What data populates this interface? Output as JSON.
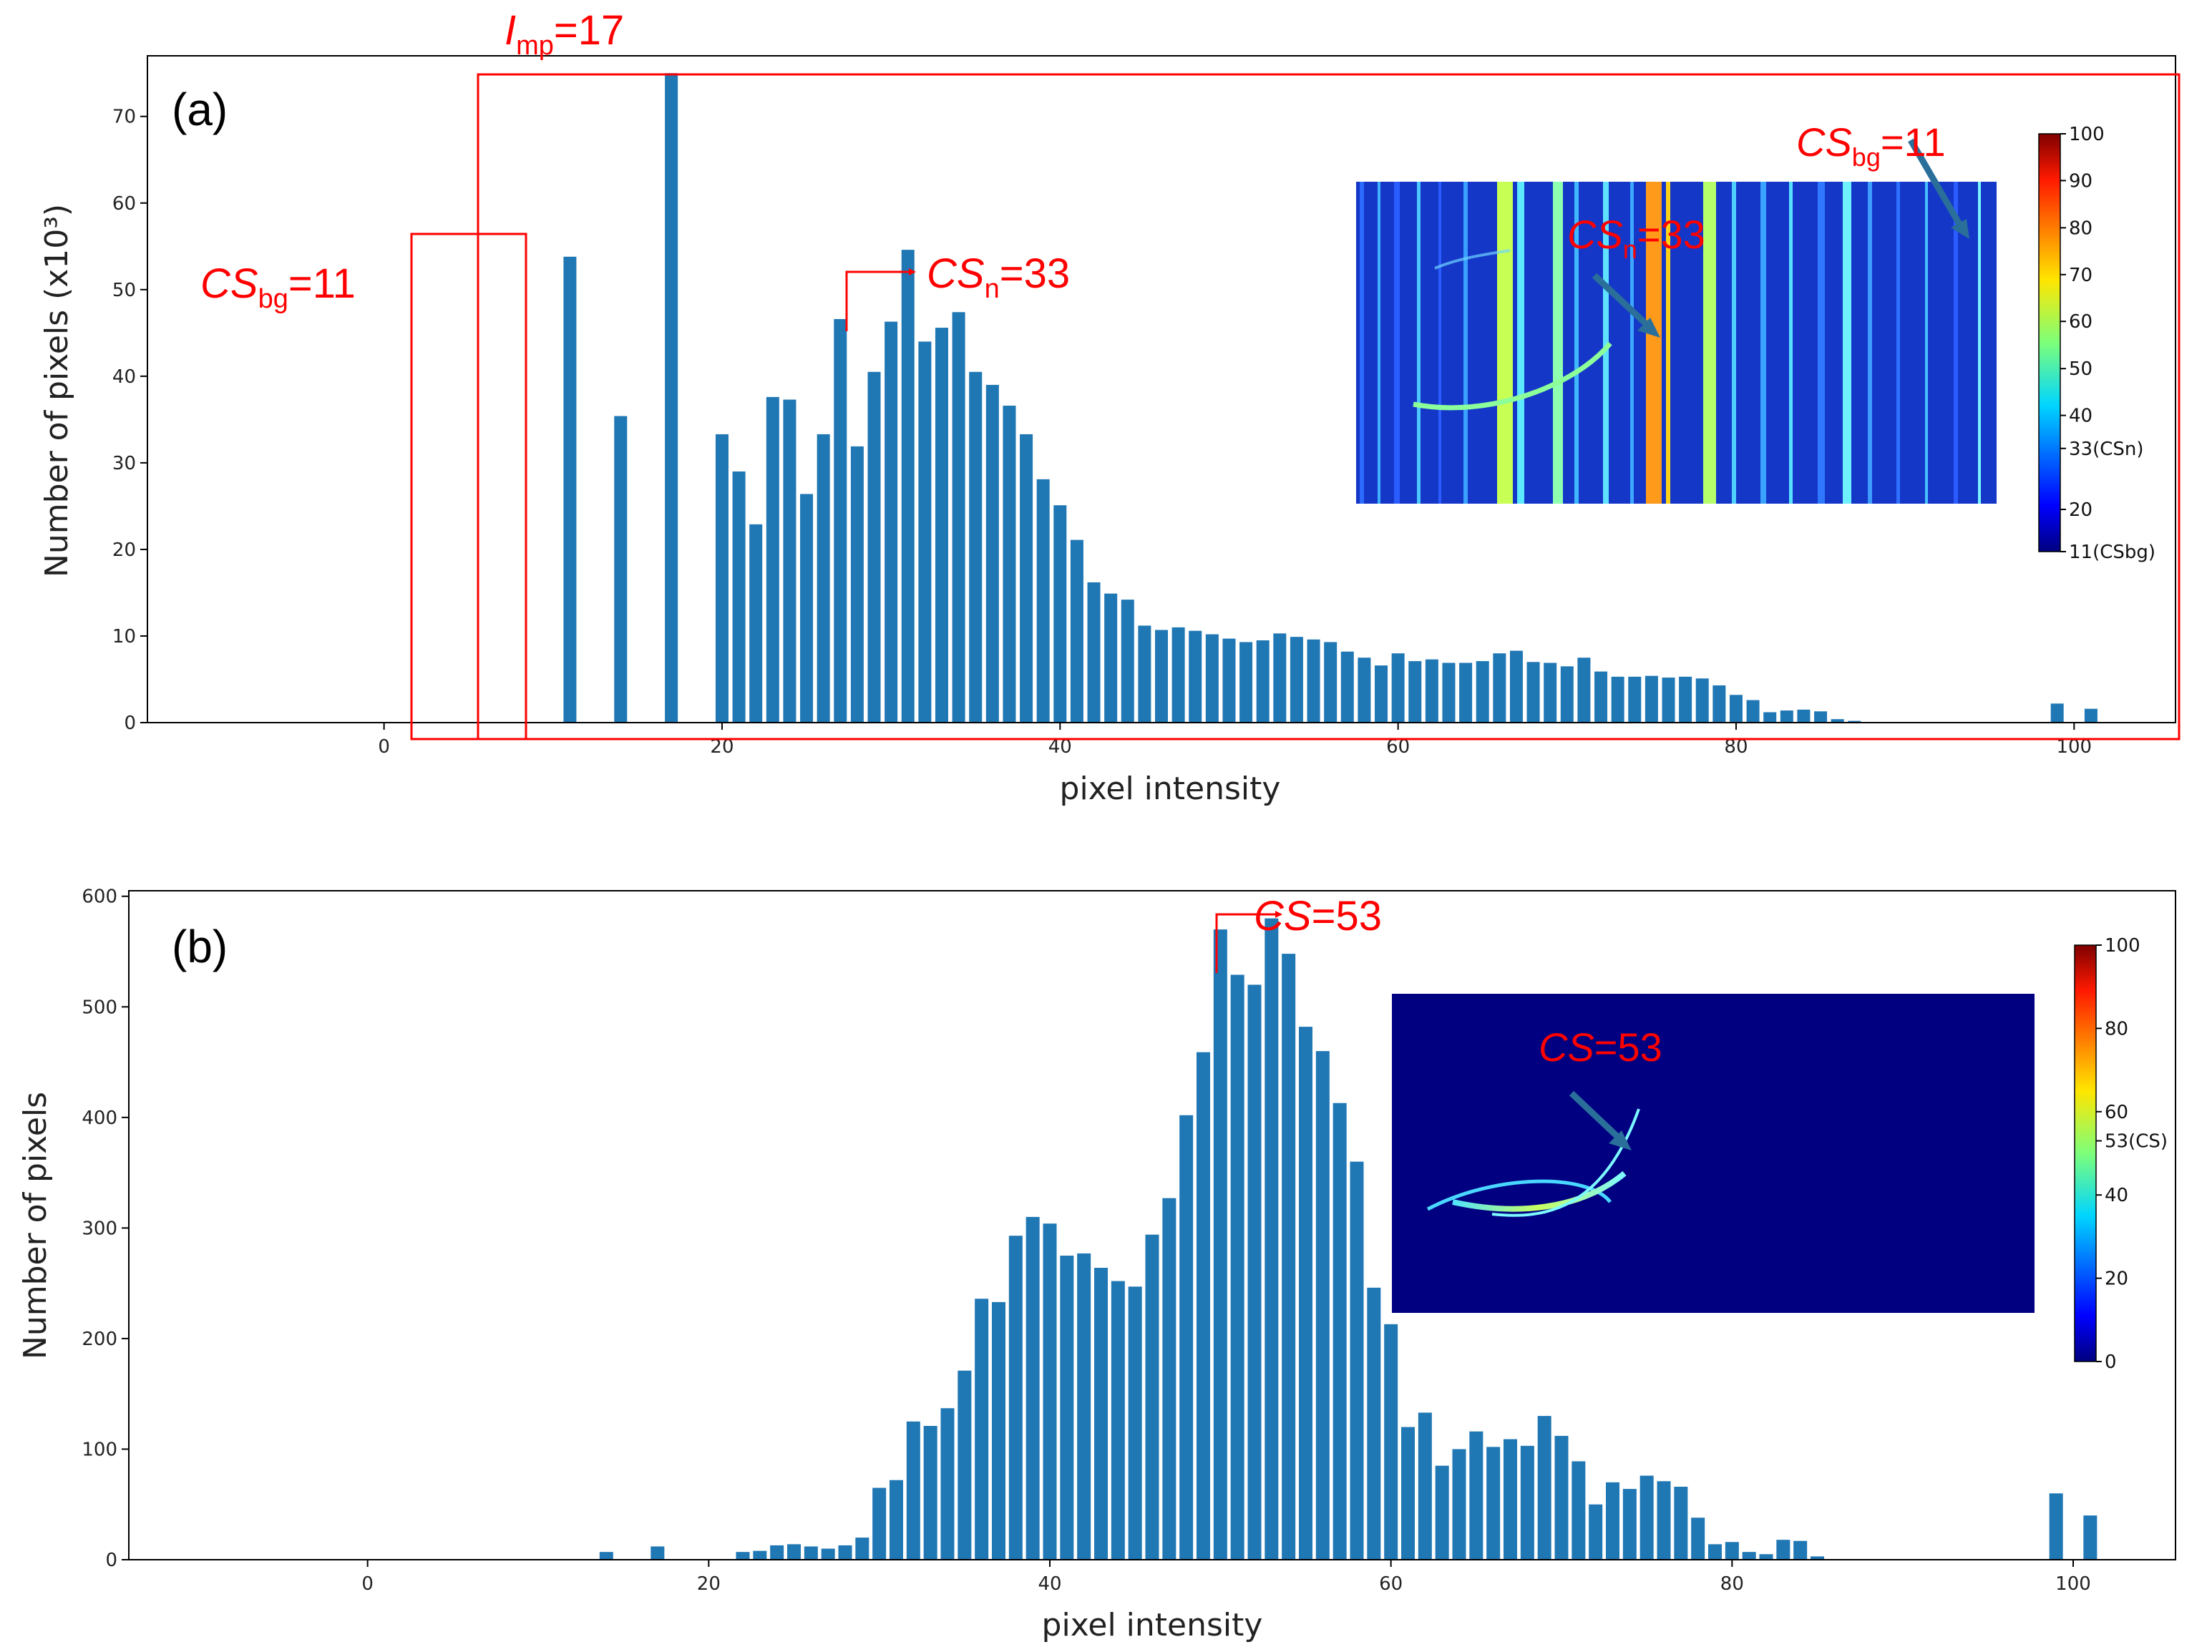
{
  "chart_data": [
    {
      "type": "bar",
      "panel_label": "(a)",
      "xlabel": "pixel intensity",
      "ylabel": "Number of pixels (x10³)",
      "xlim": [
        -14,
        106
      ],
      "ylim": [
        0,
        77
      ],
      "xticks": [
        "0",
        "20",
        "40",
        "60",
        "80",
        "100"
      ],
      "yticks": [
        "0",
        "10",
        "20",
        "30",
        "40",
        "50",
        "60",
        "70"
      ],
      "x": [
        11,
        14,
        17,
        20,
        21,
        22,
        23,
        24,
        25,
        26,
        27,
        28,
        29,
        30,
        31,
        32,
        33,
        34,
        35,
        36,
        37,
        38,
        39,
        40,
        41,
        42,
        43,
        44,
        45,
        46,
        47,
        48,
        49,
        50,
        51,
        52,
        53,
        54,
        55,
        56,
        57,
        58,
        59,
        60,
        61,
        62,
        63,
        64,
        65,
        66,
        67,
        68,
        69,
        70,
        71,
        72,
        73,
        74,
        75,
        76,
        77,
        78,
        79,
        80,
        81,
        82,
        83,
        84,
        85,
        86,
        87,
        99,
        101
      ],
      "values": [
        53.8,
        35.4,
        75,
        33.3,
        29,
        22.9,
        37.6,
        37.3,
        26.4,
        33.3,
        46.6,
        31.9,
        40.5,
        46.3,
        54.6,
        44,
        45.6,
        47.4,
        40.5,
        39,
        36.6,
        33.3,
        28.1,
        25.1,
        21.1,
        16.2,
        14.9,
        14.2,
        11.2,
        10.7,
        11,
        10.6,
        10.2,
        9.7,
        9.3,
        9.5,
        10.3,
        9.9,
        9.6,
        9.3,
        8.2,
        7.5,
        6.6,
        8,
        7.1,
        7.3,
        6.9,
        6.9,
        7.1,
        8,
        8.3,
        7,
        6.9,
        6.5,
        7.5,
        5.9,
        5.3,
        5.3,
        5.4,
        5.2,
        5.3,
        5.1,
        4.3,
        3.2,
        2.6,
        1.2,
        1.4,
        1.5,
        1.3,
        0.4,
        0.2,
        2.2,
        1.6
      ],
      "annotations": {
        "imp_italic": "I",
        "imp_sub": "mp",
        "imp_rest": "=17",
        "csbg_italic": "CS",
        "csbg_sub": "bg",
        "csbg_rest": "=11",
        "csn_italic": "CS",
        "csn_sub": "n",
        "csn_rest": "=33"
      },
      "inset": {
        "csn_italic": "CS",
        "csn_sub": "n",
        "csn_rest": "=33",
        "csbg_italic": "CS",
        "csbg_sub": "bg",
        "csbg_rest": "=11",
        "colorbar_ticks": [
          "100",
          "90",
          "80",
          "70",
          "60",
          "50",
          "40",
          "33(CSn)",
          "20",
          "11(CSbg)"
        ]
      }
    },
    {
      "type": "bar",
      "panel_label": "(b)",
      "xlabel": "pixel intensity",
      "ylabel": "Number of pixels",
      "xlim": [
        -14,
        106
      ],
      "ylim": [
        0,
        605
      ],
      "xticks": [
        "0",
        "20",
        "40",
        "60",
        "80",
        "100"
      ],
      "yticks": [
        "0",
        "100",
        "200",
        "300",
        "400",
        "500",
        "600"
      ],
      "x": [
        14,
        17,
        22,
        23,
        24,
        25,
        26,
        27,
        28,
        29,
        30,
        31,
        32,
        33,
        34,
        35,
        36,
        37,
        38,
        39,
        40,
        41,
        42,
        43,
        44,
        45,
        46,
        47,
        48,
        49,
        50,
        51,
        52,
        53,
        54,
        55,
        56,
        57,
        58,
        59,
        60,
        61,
        62,
        63,
        64,
        65,
        66,
        67,
        68,
        69,
        70,
        71,
        72,
        73,
        74,
        75,
        76,
        77,
        78,
        79,
        80,
        81,
        82,
        83,
        84,
        85,
        99,
        101
      ],
      "values": [
        7,
        12,
        7,
        8,
        13,
        14,
        12,
        10,
        13,
        20,
        65,
        72,
        125,
        121,
        137,
        171,
        236,
        233,
        293,
        310,
        304,
        275,
        277,
        264,
        252,
        247,
        294,
        327,
        402,
        459,
        570,
        529,
        520,
        580,
        548,
        482,
        460,
        413,
        360,
        246,
        213,
        120,
        133,
        85,
        100,
        116,
        102,
        109,
        103,
        130,
        112,
        89,
        50,
        70,
        64,
        76,
        71,
        66,
        38,
        14,
        16,
        7,
        5,
        18,
        17,
        3,
        60,
        40
      ],
      "annotations": {
        "cs_italic": "CS",
        "cs_rest": "=53"
      },
      "inset": {
        "cs_italic": "CS",
        "cs_rest": "=53",
        "colorbar_ticks": [
          "100",
          "80",
          "60",
          "53(CS)",
          "40",
          "20",
          "0"
        ]
      }
    }
  ]
}
